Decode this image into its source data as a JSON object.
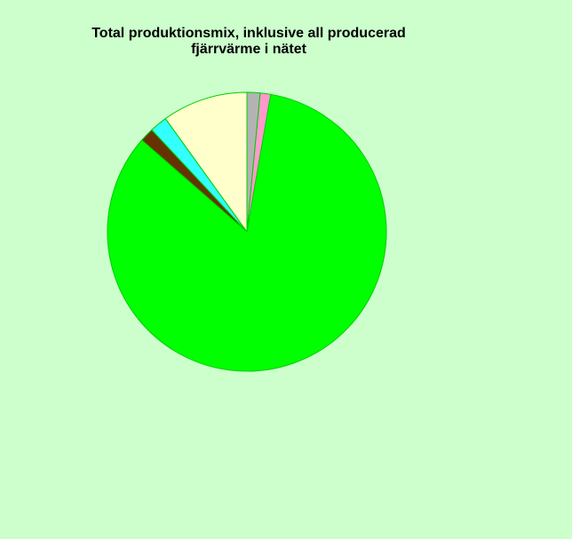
{
  "chart_data": {
    "type": "pie",
    "title_lines": [
      "Total produktionsmix, inklusive all producerad",
      "fjärrvärme i nätet"
    ],
    "start_angle_deg": 0,
    "direction": "clockwise",
    "legend": "none",
    "slices": [
      {
        "value": 1.5,
        "color": "#b3b3b3"
      },
      {
        "value": 1.2,
        "color": "#ff99cc"
      },
      {
        "value": 82.6,
        "color": "#00ff00"
      },
      {
        "value": 1.6,
        "color": "#663300"
      },
      {
        "value": 2.0,
        "color": "#33ffff"
      },
      {
        "value": 9.8,
        "color": "#ffffcc"
      }
    ],
    "slice_border_color": "#00cc00"
  }
}
